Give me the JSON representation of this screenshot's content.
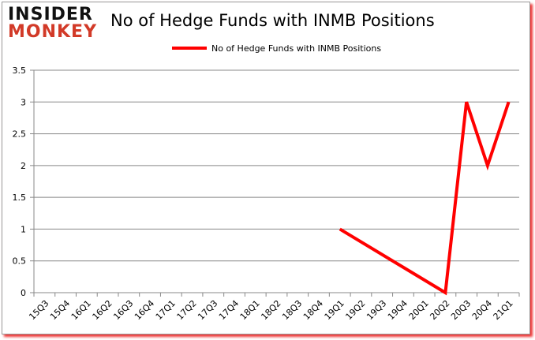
{
  "logo": {
    "line1": "INSIDER",
    "line2": "MONKEY"
  },
  "chart_data": {
    "type": "line",
    "title": "No of Hedge Funds with INMB Positions",
    "xlabel": "",
    "ylabel": "",
    "categories": [
      "15Q3",
      "15Q4",
      "16Q1",
      "16Q2",
      "16Q3",
      "16Q4",
      "17Q1",
      "17Q2",
      "17Q3",
      "17Q4",
      "18Q1",
      "18Q2",
      "18Q3",
      "18Q4",
      "19Q1",
      "19Q2",
      "19Q3",
      "19Q4",
      "20Q1",
      "20Q2",
      "20Q3",
      "20Q4",
      "21Q1"
    ],
    "series": [
      {
        "name": "No of Hedge Funds with INMB Positions",
        "color": "#ff0000",
        "values": [
          null,
          null,
          null,
          null,
          null,
          null,
          null,
          null,
          null,
          null,
          null,
          null,
          null,
          null,
          1,
          null,
          null,
          null,
          null,
          0,
          3,
          2,
          3
        ]
      }
    ],
    "ylim": [
      0,
      3.5
    ],
    "yticks": [
      "0",
      "0.5",
      "1",
      "1.5",
      "2",
      "2.5",
      "3",
      "3.5"
    ],
    "grid": true,
    "legend": "top"
  }
}
